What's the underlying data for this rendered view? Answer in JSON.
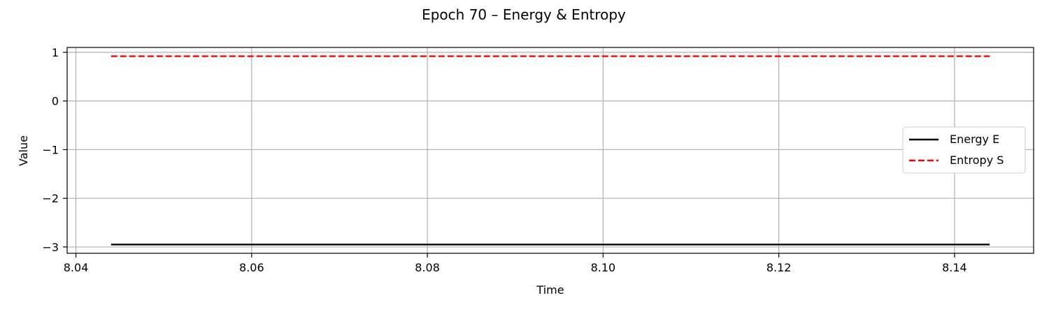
{
  "chart_data": {
    "type": "line",
    "title": "Epoch 70 – Energy & Entropy",
    "xlabel": "Time",
    "ylabel": "Value",
    "xlim": [
      8.039,
      8.149
    ],
    "ylim": [
      -3.13,
      1.1
    ],
    "x_ticks": [
      8.04,
      8.06,
      8.08,
      8.1,
      8.12,
      8.14
    ],
    "x_tick_labels": [
      "8.04",
      "8.06",
      "8.08",
      "8.10",
      "8.12",
      "8.14"
    ],
    "y_ticks": [
      1,
      0,
      -1,
      -2,
      -3
    ],
    "y_tick_labels": [
      "1",
      "0",
      "−1",
      "−2",
      "−3"
    ],
    "grid": true,
    "legend_position": "center-right",
    "series": [
      {
        "name": "Energy E",
        "color": "#000000",
        "style": "solid",
        "x": [
          8.044,
          8.144
        ],
        "y": [
          -2.95,
          -2.95
        ]
      },
      {
        "name": "Entropy S",
        "color": "#ff0000",
        "style": "dashed",
        "x": [
          8.044,
          8.144
        ],
        "y": [
          0.92,
          0.92
        ]
      }
    ]
  }
}
